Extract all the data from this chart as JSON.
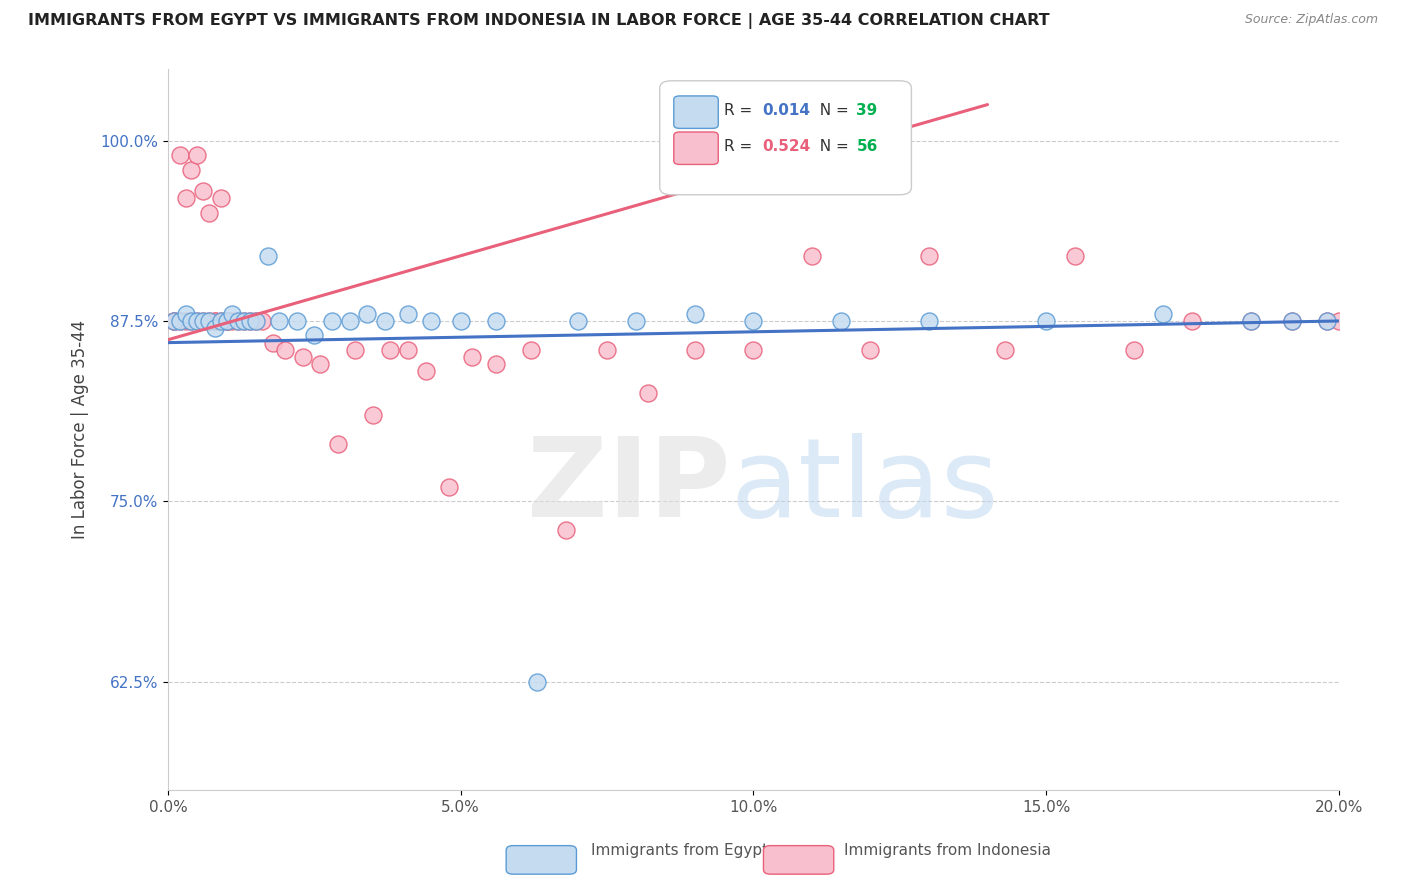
{
  "title": "IMMIGRANTS FROM EGYPT VS IMMIGRANTS FROM INDONESIA IN LABOR FORCE | AGE 35-44 CORRELATION CHART",
  "source": "Source: ZipAtlas.com",
  "ylabel": "In Labor Force | Age 35-44",
  "xlim": [
    0.0,
    0.2
  ],
  "ylim": [
    0.55,
    1.05
  ],
  "xticks": [
    0.0,
    0.05,
    0.1,
    0.15,
    0.2
  ],
  "xticklabels": [
    "0.0%",
    "5.0%",
    "10.0%",
    "15.0%",
    "20.0%"
  ],
  "yticks": [
    0.625,
    0.75,
    0.875,
    1.0
  ],
  "yticklabels": [
    "62.5%",
    "75.0%",
    "87.5%",
    "100.0%"
  ],
  "egypt_color": "#c5dcf0",
  "egypt_edge": "#5b9bd5",
  "indonesia_color": "#f8c0cf",
  "indonesia_edge": "#e8607a",
  "trend_egypt_color": "#4472c4",
  "trend_indonesia_color": "#e8607a",
  "egypt_R": "0.014",
  "egypt_N": "39",
  "indonesia_R": "0.524",
  "indonesia_N": "56",
  "R_color_egypt": "#4472c4",
  "N_color_egypt": "#00b050",
  "R_color_indonesia": "#e8607a",
  "N_color_indonesia": "#00b050",
  "egypt_x": [
    0.001,
    0.002,
    0.003,
    0.004,
    0.005,
    0.006,
    0.007,
    0.008,
    0.009,
    0.01,
    0.011,
    0.012,
    0.013,
    0.014,
    0.015,
    0.017,
    0.019,
    0.022,
    0.025,
    0.028,
    0.031,
    0.034,
    0.037,
    0.041,
    0.045,
    0.05,
    0.056,
    0.063,
    0.07,
    0.08,
    0.09,
    0.1,
    0.115,
    0.13,
    0.15,
    0.17,
    0.185,
    0.192,
    0.198
  ],
  "egypt_y": [
    0.875,
    0.875,
    0.88,
    0.875,
    0.875,
    0.875,
    0.875,
    0.87,
    0.875,
    0.875,
    0.88,
    0.875,
    0.875,
    0.875,
    0.875,
    0.92,
    0.875,
    0.875,
    0.865,
    0.875,
    0.875,
    0.88,
    0.875,
    0.88,
    0.875,
    0.875,
    0.875,
    0.625,
    0.875,
    0.875,
    0.88,
    0.875,
    0.875,
    0.875,
    0.875,
    0.88,
    0.875,
    0.875,
    0.875
  ],
  "indonesia_x": [
    0.001,
    0.001,
    0.002,
    0.002,
    0.003,
    0.003,
    0.004,
    0.004,
    0.005,
    0.005,
    0.006,
    0.006,
    0.007,
    0.007,
    0.008,
    0.008,
    0.009,
    0.009,
    0.01,
    0.01,
    0.011,
    0.012,
    0.013,
    0.014,
    0.015,
    0.016,
    0.018,
    0.02,
    0.023,
    0.026,
    0.029,
    0.032,
    0.035,
    0.038,
    0.041,
    0.044,
    0.048,
    0.052,
    0.056,
    0.062,
    0.068,
    0.075,
    0.082,
    0.09,
    0.1,
    0.11,
    0.12,
    0.13,
    0.143,
    0.155,
    0.165,
    0.175,
    0.185,
    0.192,
    0.198,
    0.2
  ],
  "indonesia_y": [
    0.875,
    0.875,
    0.99,
    0.875,
    0.875,
    0.96,
    0.875,
    0.98,
    0.875,
    0.99,
    0.875,
    0.965,
    0.875,
    0.95,
    0.875,
    0.875,
    0.96,
    0.875,
    0.875,
    0.875,
    0.875,
    0.875,
    0.875,
    0.875,
    0.875,
    0.875,
    0.86,
    0.855,
    0.85,
    0.845,
    0.79,
    0.855,
    0.81,
    0.855,
    0.855,
    0.84,
    0.76,
    0.85,
    0.845,
    0.855,
    0.73,
    0.855,
    0.825,
    0.855,
    0.855,
    0.92,
    0.855,
    0.92,
    0.855,
    0.92,
    0.855,
    0.875,
    0.875,
    0.875,
    0.875,
    0.875
  ]
}
